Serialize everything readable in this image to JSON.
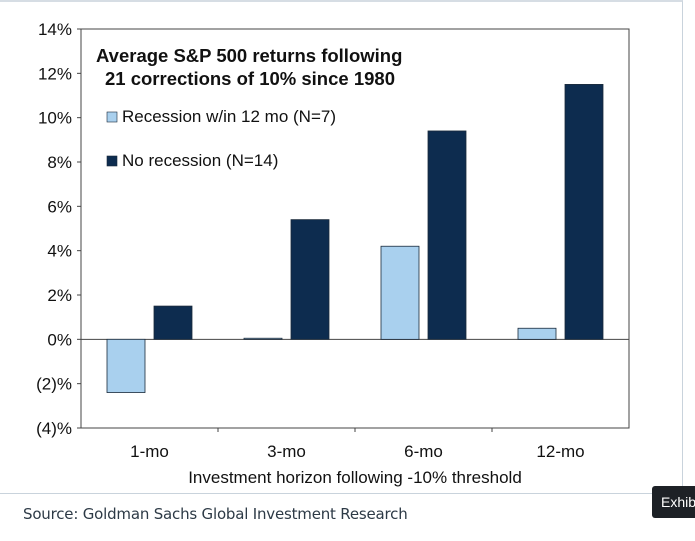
{
  "chart_data": {
    "type": "bar",
    "title_lines": [
      "Average S&P 500 returns following",
      "21 corrections of 10% since 1980"
    ],
    "categories": [
      "1-mo",
      "3-mo",
      "6-mo",
      "12-mo"
    ],
    "series": [
      {
        "name": "Recession w/in 12 mo (N=7)",
        "color": "#a9d0ee",
        "values": [
          -2.4,
          0.05,
          4.2,
          0.5
        ]
      },
      {
        "name": "No recession (N=14)",
        "color": "#0d2c4f",
        "values": [
          1.5,
          5.4,
          9.4,
          11.5
        ]
      }
    ],
    "xlabel": "Investment horizon following -10% threshold",
    "ylabel": "",
    "ylim": [
      -4,
      14
    ],
    "yticks": [
      14,
      12,
      10,
      8,
      6,
      4,
      2,
      0,
      -2,
      -4
    ],
    "ytick_labels": [
      "14%",
      "12%",
      "10%",
      "8%",
      "6%",
      "4%",
      "2%",
      "0%",
      "(2)%",
      "(4)%"
    ],
    "legend_position": "top-left",
    "grid": false
  },
  "source_text": "Source: Goldman Sachs Global Investment Research",
  "exhibit_tab_label": "Exhibit"
}
